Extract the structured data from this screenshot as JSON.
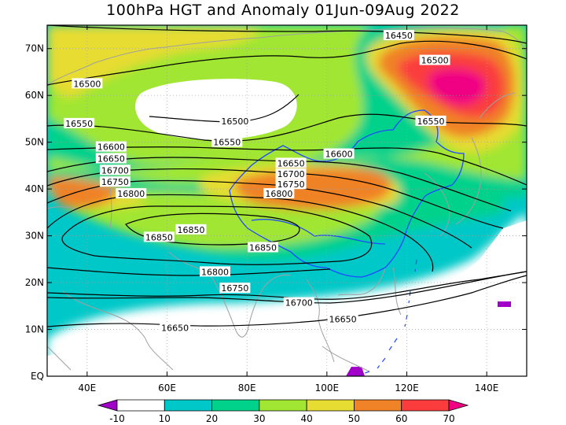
{
  "title": "100hPa HGT and Anomaly 01Jun-09Aug 2022",
  "map": {
    "lon_range": [
      30,
      150
    ],
    "lat_range": [
      0,
      75
    ],
    "lon_ticks": [
      {
        "lon": 40,
        "label": "40E"
      },
      {
        "lon": 60,
        "label": "60E"
      },
      {
        "lon": 80,
        "label": "80E"
      },
      {
        "lon": 100,
        "label": "100E"
      },
      {
        "lon": 120,
        "label": "120E"
      },
      {
        "lon": 140,
        "label": "140E"
      }
    ],
    "lat_ticks": [
      {
        "lat": 0,
        "label": "EQ"
      },
      {
        "lat": 10,
        "label": "10N"
      },
      {
        "lat": 20,
        "label": "20N"
      },
      {
        "lat": 30,
        "label": "30N"
      },
      {
        "lat": 40,
        "label": "40N"
      },
      {
        "lat": 50,
        "label": "50N"
      },
      {
        "lat": 60,
        "label": "60N"
      },
      {
        "lat": 70,
        "label": "70N"
      }
    ],
    "gridlines": "dotted",
    "contour_labels": [
      {
        "text": "16450",
        "lon": 118,
        "lat": 72.8
      },
      {
        "text": "16500",
        "lon": 40,
        "lat": 62.5
      },
      {
        "text": "16500",
        "lon": 127,
        "lat": 67.5
      },
      {
        "text": "16500",
        "lon": 77,
        "lat": 54.5
      },
      {
        "text": "16550",
        "lon": 38,
        "lat": 54.0
      },
      {
        "text": "16550",
        "lon": 75,
        "lat": 50.0
      },
      {
        "text": "16550",
        "lon": 126,
        "lat": 54.5
      },
      {
        "text": "16600",
        "lon": 46,
        "lat": 49.0
      },
      {
        "text": "16600",
        "lon": 103,
        "lat": 47.5
      },
      {
        "text": "16650",
        "lon": 46,
        "lat": 46.5
      },
      {
        "text": "16650",
        "lon": 91,
        "lat": 45.5
      },
      {
        "text": "16650",
        "lon": 62,
        "lat": 10.3
      },
      {
        "text": "16650",
        "lon": 104,
        "lat": 12.2
      },
      {
        "text": "16700",
        "lon": 47,
        "lat": 44.0
      },
      {
        "text": "16700",
        "lon": 91,
        "lat": 43.2
      },
      {
        "text": "16700",
        "lon": 93,
        "lat": 15.7
      },
      {
        "text": "16750",
        "lon": 47,
        "lat": 41.5
      },
      {
        "text": "16750",
        "lon": 91,
        "lat": 41.0
      },
      {
        "text": "16750",
        "lon": 77,
        "lat": 18.8
      },
      {
        "text": "16800",
        "lon": 51,
        "lat": 39.0
      },
      {
        "text": "16800",
        "lon": 88,
        "lat": 39.0
      },
      {
        "text": "16800",
        "lon": 72,
        "lat": 22.3
      },
      {
        "text": "16850",
        "lon": 66,
        "lat": 31.3
      },
      {
        "text": "16850",
        "lon": 58,
        "lat": 29.7
      },
      {
        "text": "16850",
        "lon": 84,
        "lat": 27.5
      }
    ]
  },
  "colorbar": {
    "labels": [
      "-10",
      "10",
      "20",
      "30",
      "40",
      "50",
      "60",
      "70"
    ],
    "colors": [
      "#a000c8",
      "#ffffff",
      "#00c8c8",
      "#00d28c",
      "#a0e632",
      "#e6dc32",
      "#f08228",
      "#fa3c3c",
      "#f00082"
    ]
  }
}
